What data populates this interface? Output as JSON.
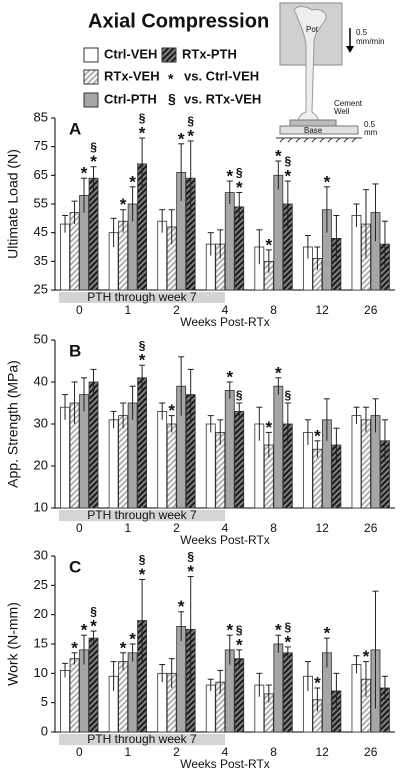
{
  "title": "Axial Compression",
  "significance": [
    {
      "symbol": "*",
      "label": "vs. Ctrl-VEH"
    },
    {
      "symbol": "§",
      "label": "vs. RTx-VEH"
    }
  ],
  "diagram": {
    "pot_label": "Pot",
    "rate_label": [
      "0.5",
      "mm/min"
    ],
    "cement_label": [
      "Cement",
      "Well"
    ],
    "base_label": "Base",
    "gap_label": [
      "0.5",
      "mm"
    ]
  },
  "chart_data": [
    {
      "type": "bar",
      "panel": "A",
      "y_label": "Ultimate Load (N)",
      "x_label": "Weeks Post-RTx",
      "shaded_band_label": "PTH through week 7",
      "categories": [
        "0",
        "1",
        "2",
        "4",
        "8",
        "12",
        "26"
      ],
      "ylim": [
        25,
        85
      ],
      "yticks": [
        25,
        35,
        45,
        55,
        65,
        75,
        85
      ],
      "series": [
        {
          "name": "Ctrl-VEH",
          "color": "#ffffff",
          "values": [
            48,
            45,
            49,
            41,
            40,
            40,
            51
          ],
          "errors": [
            3,
            5,
            4,
            4,
            6,
            4,
            4
          ],
          "annotations": [
            null,
            null,
            null,
            null,
            null,
            null,
            null
          ]
        },
        {
          "name": "RTx-VEH",
          "color": "#b0b0b0",
          "hatch": "#ffffff",
          "values": [
            52,
            49,
            47,
            41,
            35,
            36,
            48
          ],
          "errors": [
            4,
            4,
            6,
            5,
            4,
            4,
            12
          ],
          "annotations": [
            null,
            [
              "*"
            ],
            null,
            null,
            [
              "*"
            ],
            null,
            null
          ]
        },
        {
          "name": "Ctrl-PTH",
          "color": "#a6a6a6",
          "values": [
            58,
            55,
            66,
            59,
            65,
            53,
            52
          ],
          "errors": [
            6,
            6,
            10,
            4,
            5,
            8,
            10
          ],
          "annotations": [
            [
              "*"
            ],
            [
              "*"
            ],
            [
              "*"
            ],
            [
              "*"
            ],
            [
              "*"
            ],
            [
              "*"
            ],
            null
          ]
        },
        {
          "name": "RTx-PTH",
          "color": "#1a1a1a",
          "hatch": "#808080",
          "values": [
            64,
            69,
            64,
            54,
            55,
            43,
            41
          ],
          "errors": [
            4,
            9,
            13,
            5,
            8,
            8,
            8
          ],
          "annotations": [
            [
              "§",
              "*"
            ],
            [
              "§",
              "*"
            ],
            [
              "§",
              "*"
            ],
            [
              "§",
              "*"
            ],
            [
              "§",
              "*"
            ],
            null,
            null
          ]
        }
      ]
    },
    {
      "type": "bar",
      "panel": "B",
      "y_label": "App. Strength (MPa)",
      "x_label": "Weeks Post-RTx",
      "shaded_band_label": "PTH through week 7",
      "categories": [
        "0",
        "1",
        "2",
        "4",
        "8",
        "12",
        "26"
      ],
      "ylim": [
        10,
        50
      ],
      "yticks": [
        10,
        20,
        30,
        40,
        50
      ],
      "series": [
        {
          "name": "Ctrl-VEH",
          "color": "#ffffff",
          "values": [
            34,
            31,
            33,
            30,
            30,
            28,
            32
          ],
          "errors": [
            3,
            2,
            2,
            2,
            4,
            3,
            2
          ],
          "annotations": [
            null,
            null,
            null,
            null,
            null,
            null,
            null
          ]
        },
        {
          "name": "RTx-VEH",
          "color": "#b0b0b0",
          "hatch": "#ffffff",
          "values": [
            35,
            32,
            30,
            28,
            25,
            24,
            31
          ],
          "errors": [
            5,
            3,
            2,
            3,
            3,
            2,
            3
          ],
          "annotations": [
            null,
            null,
            [
              "*"
            ],
            null,
            [
              "*"
            ],
            [
              "*"
            ],
            null
          ]
        },
        {
          "name": "Ctrl-PTH",
          "color": "#a6a6a6",
          "values": [
            37,
            35,
            39,
            38,
            39,
            31,
            32
          ],
          "errors": [
            4,
            4,
            7,
            2,
            2,
            5,
            4
          ],
          "annotations": [
            null,
            null,
            null,
            [
              "*"
            ],
            [
              "*"
            ],
            null,
            null
          ]
        },
        {
          "name": "RTx-PTH",
          "color": "#1a1a1a",
          "hatch": "#808080",
          "values": [
            40,
            41,
            37,
            33,
            30,
            25,
            26
          ],
          "errors": [
            3,
            3,
            6,
            2,
            5,
            4,
            5
          ],
          "annotations": [
            null,
            [
              "§",
              "*"
            ],
            null,
            [
              "§"
            ],
            [
              "§"
            ],
            null,
            null
          ]
        }
      ]
    },
    {
      "type": "bar",
      "panel": "C",
      "y_label": "Work (N-mm)",
      "x_label": "Weeks Post-RTx",
      "shaded_band_label": "PTH through week 7",
      "categories": [
        "0",
        "1",
        "2",
        "4",
        "8",
        "12",
        "26"
      ],
      "ylim": [
        0,
        30
      ],
      "yticks": [
        0,
        5,
        10,
        15,
        20,
        25,
        30
      ],
      "series": [
        {
          "name": "Ctrl-VEH",
          "color": "#ffffff",
          "values": [
            10.5,
            9.5,
            10,
            8,
            8,
            9.5,
            11.5
          ],
          "errors": [
            1.2,
            2.5,
            1.5,
            1,
            2,
            2.5,
            1.5
          ],
          "annotations": [
            null,
            null,
            null,
            null,
            null,
            null,
            null
          ]
        },
        {
          "name": "RTx-VEH",
          "color": "#b0b0b0",
          "hatch": "#ffffff",
          "values": [
            12.5,
            12,
            10,
            8.5,
            6.5,
            5.5,
            9
          ],
          "errors": [
            1,
            1.5,
            2.5,
            2,
            1.5,
            2,
            3
          ],
          "annotations": [
            [
              "*"
            ],
            [
              "*"
            ],
            null,
            null,
            null,
            [
              "*"
            ],
            [
              "*"
            ]
          ]
        },
        {
          "name": "Ctrl-PTH",
          "color": "#a6a6a6",
          "values": [
            14,
            13.5,
            18,
            14,
            15,
            13.5,
            14
          ],
          "errors": [
            2.5,
            1.5,
            2.5,
            2.5,
            1.5,
            2.5,
            10
          ],
          "annotations": [
            [
              "*"
            ],
            [
              "*"
            ],
            [
              "*"
            ],
            [
              "*"
            ],
            [
              "*"
            ],
            [
              "*"
            ],
            null
          ]
        },
        {
          "name": "RTx-PTH",
          "color": "#1a1a1a",
          "hatch": "#808080",
          "values": [
            16,
            19,
            17.5,
            12.5,
            13.5,
            7,
            7.5
          ],
          "errors": [
            1.2,
            7,
            9,
            1.5,
            1,
            3,
            2
          ],
          "annotations": [
            [
              "§",
              "*"
            ],
            [
              "§",
              "*"
            ],
            [
              "§",
              "*"
            ],
            [
              "§",
              "*"
            ],
            [
              "§",
              "*"
            ],
            null,
            null
          ]
        }
      ]
    }
  ]
}
